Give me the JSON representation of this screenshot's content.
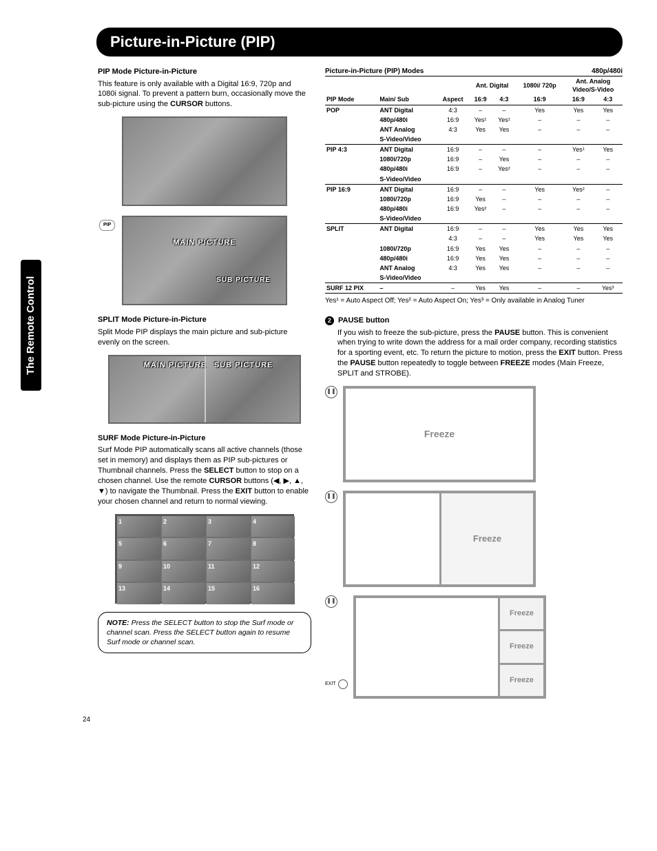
{
  "page_number": "24",
  "side_tab": "The Remote Control",
  "header": "Picture-in-Picture (PIP)",
  "pip_mode": {
    "heading": "PIP Mode Picture-in-Picture",
    "body_pre": "This feature is only available with a Digital 16:9, 720p and 1080i signal. To prevent a pattern burn, occasionally move the sub-picture using the ",
    "body_bold": "CURSOR",
    "body_post": " buttons.",
    "pip_badge": "PIP",
    "main_label": "MAIN PICTURE",
    "sub_label": "SUB PICTURE"
  },
  "split_mode": {
    "heading": "SPLIT Mode Picture-in-Picture",
    "body": "Split Mode PIP displays the main picture and sub-picture evenly on the screen.",
    "main_label": "MAIN PICTURE",
    "sub_label": "SUB PICTURE"
  },
  "surf_mode": {
    "heading": "SURF Mode Picture-in-Picture",
    "body_parts": [
      "Surf Mode PIP automatically scans all active channels (those set in memory) and displays them as PIP sub-pictures or Thumbnail channels. Press the ",
      "SELECT",
      " button to stop on a chosen channel. Use the remote ",
      "CURSOR",
      " buttons (◀, ▶, ▲, ▼) to navigate the Thumbnail. Press the ",
      "EXIT",
      " button to enable your chosen channel and return to normal viewing."
    ],
    "thumbs": [
      "1",
      "2",
      "3",
      "4",
      "5",
      "6",
      "7",
      "8",
      "9",
      "10",
      "11",
      "12",
      "13",
      "14",
      "15",
      "16"
    ]
  },
  "note": {
    "label": "NOTE:",
    "text": "Press the SELECT button to stop the Surf mode or channel scan. Press the SELECT button again to resume Surf mode or channel scan."
  },
  "modes_table": {
    "title": "Picture-in-Picture (PIP) Modes",
    "supergroup_right": "480p/480i",
    "header2": {
      "pip_mode": "PIP Mode",
      "main_sub": "Main/ Sub",
      "aspect": "Aspect",
      "ant_digital": "Ant. Digital",
      "c169_a": "16:9",
      "c43_a": "4:3",
      "col_1080_720": "1080i/ 720p",
      "c169_b": "16:9",
      "ant_analog": "Ant. Analog",
      "video_svideo": "Video/S-Video",
      "c169_c": "16:9",
      "c43_c": "4:3"
    },
    "groups": [
      {
        "mode": "POP",
        "rows": [
          {
            "sub": "ANT Digital",
            "aspect": "4:3",
            "d169": "–",
            "d43": "–",
            "p169": "Yes",
            "a169": "Yes",
            "a43": "Yes"
          },
          {
            "sub": "480p/480i",
            "aspect": "16:9",
            "d169": "Yes¹",
            "d43": "Yes¹",
            "p169": "–",
            "a169": "–",
            "a43": "–"
          },
          {
            "sub": "ANT Analog",
            "aspect": "4:3",
            "d169": "Yes",
            "d43": "Yes",
            "p169": "–",
            "a169": "–",
            "a43": "–"
          },
          {
            "sub": "S-Video/Video",
            "aspect": "",
            "d169": "",
            "d43": "",
            "p169": "",
            "a169": "",
            "a43": ""
          }
        ]
      },
      {
        "mode": "PIP 4:3",
        "rows": [
          {
            "sub": "ANT Digital",
            "aspect": "16:9",
            "d169": "–",
            "d43": "–",
            "p169": "–",
            "a169": "Yes¹",
            "a43": "Yes"
          },
          {
            "sub": "1080i/720p",
            "aspect": "16:9",
            "d169": "–",
            "d43": "Yes",
            "p169": "–",
            "a169": "–",
            "a43": "–"
          },
          {
            "sub": "480p/480i",
            "aspect": "16:9",
            "d169": "–",
            "d43": "Yes²",
            "p169": "–",
            "a169": "–",
            "a43": "–"
          },
          {
            "sub": "S-Video/Video",
            "aspect": "",
            "d169": "",
            "d43": "",
            "p169": "",
            "a169": "",
            "a43": ""
          }
        ]
      },
      {
        "mode": "PIP 16:9",
        "rows": [
          {
            "sub": "ANT Digital",
            "aspect": "16:9",
            "d169": "–",
            "d43": "–",
            "p169": "Yes",
            "a169": "Yes²",
            "a43": "–"
          },
          {
            "sub": "1080i/720p",
            "aspect": "16:9",
            "d169": "Yes",
            "d43": "–",
            "p169": "–",
            "a169": "–",
            "a43": "–"
          },
          {
            "sub": "480p/480i",
            "aspect": "16:9",
            "d169": "Yes²",
            "d43": "–",
            "p169": "–",
            "a169": "–",
            "a43": "–"
          },
          {
            "sub": "S-Video/Video",
            "aspect": "",
            "d169": "",
            "d43": "",
            "p169": "",
            "a169": "",
            "a43": ""
          }
        ]
      },
      {
        "mode": "SPLIT",
        "rows": [
          {
            "sub": "ANT Digital",
            "aspect": "16:9",
            "d169": "–",
            "d43": "–",
            "p169": "Yes",
            "a169": "Yes",
            "a43": "Yes"
          },
          {
            "sub": "",
            "aspect": "4:3",
            "d169": "–",
            "d43": "–",
            "p169": "Yes",
            "a169": "Yes",
            "a43": "Yes"
          },
          {
            "sub": "1080i/720p",
            "aspect": "16:9",
            "d169": "Yes",
            "d43": "Yes",
            "p169": "–",
            "a169": "–",
            "a43": "–"
          },
          {
            "sub": "480p/480i",
            "aspect": "16:9",
            "d169": "Yes",
            "d43": "Yes",
            "p169": "–",
            "a169": "–",
            "a43": "–"
          },
          {
            "sub": "ANT Analog",
            "aspect": "4:3",
            "d169": "Yes",
            "d43": "Yes",
            "p169": "–",
            "a169": "–",
            "a43": "–"
          },
          {
            "sub": "S-Video/Video",
            "aspect": "",
            "d169": "",
            "d43": "",
            "p169": "",
            "a169": "",
            "a43": ""
          }
        ]
      },
      {
        "mode": "SURF 12 PIX",
        "rows": [
          {
            "sub": "–",
            "aspect": "–",
            "d169": "Yes",
            "d43": "Yes",
            "p169": "–",
            "a169": "–",
            "a43": "Yes³"
          }
        ]
      }
    ],
    "footnote": "Yes¹ = Auto Aspect Off; Yes² = Auto Aspect On; Yes³ = Only available in Analog Tuner"
  },
  "pause": {
    "num": "2",
    "heading": "PAUSE button",
    "body_parts": [
      "If you wish to freeze the sub-picture, press the ",
      "PAUSE",
      " button. This is convenient when trying to write down the address for a mail order company, recording statistics for a sporting event, etc. To return the picture to motion, press the ",
      "EXIT",
      " button. Press the ",
      "PAUSE",
      " button repeatedly to toggle between ",
      "FREEZE",
      " modes (Main Freeze, SPLIT and STROBE)."
    ],
    "freeze_label": "Freeze",
    "exit_label": "EXIT",
    "pause_glyph": "❚❚"
  }
}
